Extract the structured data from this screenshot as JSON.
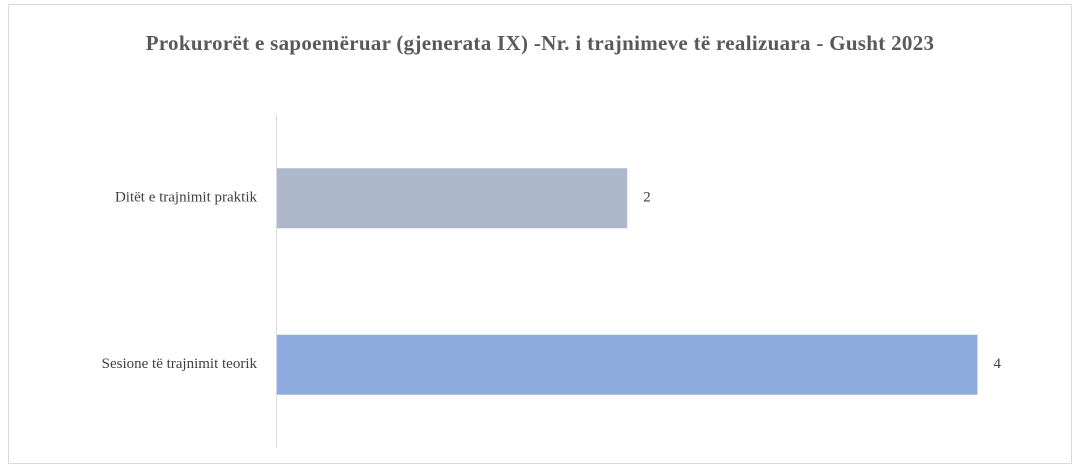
{
  "chart_data": {
    "type": "bar",
    "orientation": "horizontal",
    "title": "Prokurorët e sapoemëruar (gjenerata IX) -Nr. i trajnimeve të realizuara - Gusht 2023",
    "categories": [
      "Ditët e trajnimit praktik",
      "Sesione të trajnimit teorik"
    ],
    "values": [
      2,
      4
    ],
    "colors": [
      "#adb9ca",
      "#8faadc"
    ],
    "xlim": [
      0,
      4.5
    ]
  }
}
